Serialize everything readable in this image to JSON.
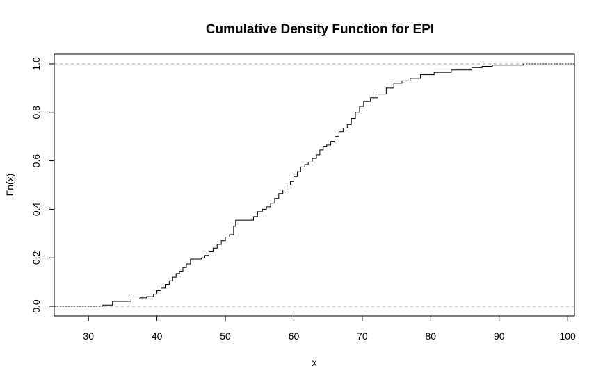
{
  "chart_data": {
    "type": "line",
    "subtype": "step",
    "title": "Cumulative Density Function for EPI",
    "xlabel": "x",
    "ylabel": "Fn(x)",
    "xlim": [
      25,
      101
    ],
    "ylim": [
      -0.04,
      1.04
    ],
    "xticks": [
      "30",
      "40",
      "50",
      "60",
      "70",
      "80",
      "90",
      "100"
    ],
    "yticks": [
      "0.0",
      "0.2",
      "0.4",
      "0.6",
      "0.8",
      "1.0"
    ],
    "reference_lines": [
      0,
      1
    ],
    "reference_line_style": "dashed gray",
    "grid": false,
    "legend": "none",
    "line_color": "#000000",
    "series": [
      {
        "x": [
          32.1,
          33.5,
          36.2,
          37.5,
          38.5,
          39.5,
          40.0,
          40.6,
          41.2,
          41.8,
          42.3,
          42.8,
          43.3,
          43.8,
          44.3,
          44.9,
          46.5,
          47.0,
          47.6,
          48.2,
          48.8,
          49.4,
          50.0,
          50.6,
          51.2,
          51.5,
          54.1,
          54.7,
          55.4,
          56.0,
          56.6,
          57.2,
          57.8,
          58.4,
          59.0,
          59.5,
          60.0,
          60.5,
          61.0,
          61.6,
          62.1,
          62.7,
          63.3,
          63.8,
          64.3,
          64.8,
          65.4,
          66.0,
          66.6,
          67.2,
          67.8,
          68.4,
          69.0,
          69.6,
          70.2,
          71.2,
          72.3,
          73.5,
          74.6,
          75.8,
          77.0,
          78.5,
          80.5,
          83.0,
          86.0,
          87.5,
          89.0,
          93.5
        ],
        "y": [
          0.005,
          0.02,
          0.03,
          0.035,
          0.04,
          0.05,
          0.065,
          0.075,
          0.09,
          0.105,
          0.12,
          0.135,
          0.145,
          0.16,
          0.175,
          0.195,
          0.2,
          0.21,
          0.225,
          0.24,
          0.255,
          0.27,
          0.285,
          0.295,
          0.33,
          0.355,
          0.37,
          0.39,
          0.4,
          0.41,
          0.425,
          0.445,
          0.465,
          0.48,
          0.5,
          0.515,
          0.535,
          0.555,
          0.575,
          0.585,
          0.595,
          0.61,
          0.625,
          0.645,
          0.66,
          0.665,
          0.68,
          0.7,
          0.72,
          0.735,
          0.75,
          0.775,
          0.8,
          0.825,
          0.845,
          0.86,
          0.875,
          0.9,
          0.92,
          0.93,
          0.94,
          0.955,
          0.965,
          0.975,
          0.985,
          0.99,
          0.995,
          1.0
        ]
      }
    ]
  }
}
